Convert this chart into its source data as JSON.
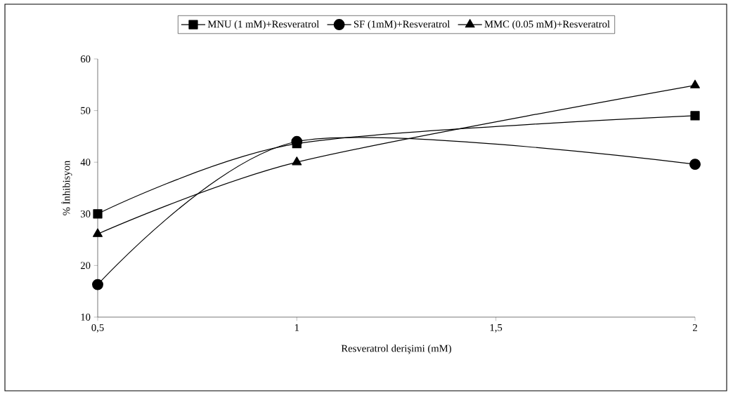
{
  "chart_data": {
    "type": "line",
    "xlabel": "Resveratrol derişimi (mM)",
    "ylabel": "% İnhibisyon",
    "x": [
      0.5,
      1,
      2
    ],
    "series": [
      {
        "name": "MNU (1 mM)+Resveratrol",
        "color": "#000000",
        "marker": "square",
        "values": [
          30,
          43.6,
          49
        ]
      },
      {
        "name": "SF (1mM)+Resveratrol",
        "color": "#000000",
        "marker": "circle",
        "values": [
          16.3,
          44,
          39.6
        ]
      },
      {
        "name": "MMC (0.05 mM)+Resveratrol",
        "color": "#000000",
        "marker": "triangle",
        "values": [
          26.1,
          40,
          54.9
        ]
      }
    ],
    "xlim": [
      0.5,
      2
    ],
    "ylim": [
      10,
      60
    ],
    "xticks": [
      {
        "value": 0.5,
        "label": "0,5"
      },
      {
        "value": 1,
        "label": "1"
      },
      {
        "value": 1.5,
        "label": "1,5"
      },
      {
        "value": 2,
        "label": "2"
      }
    ],
    "yticks": [
      10,
      20,
      30,
      40,
      50,
      60
    ],
    "legend": "top",
    "grid": false,
    "line_style": "solid"
  }
}
